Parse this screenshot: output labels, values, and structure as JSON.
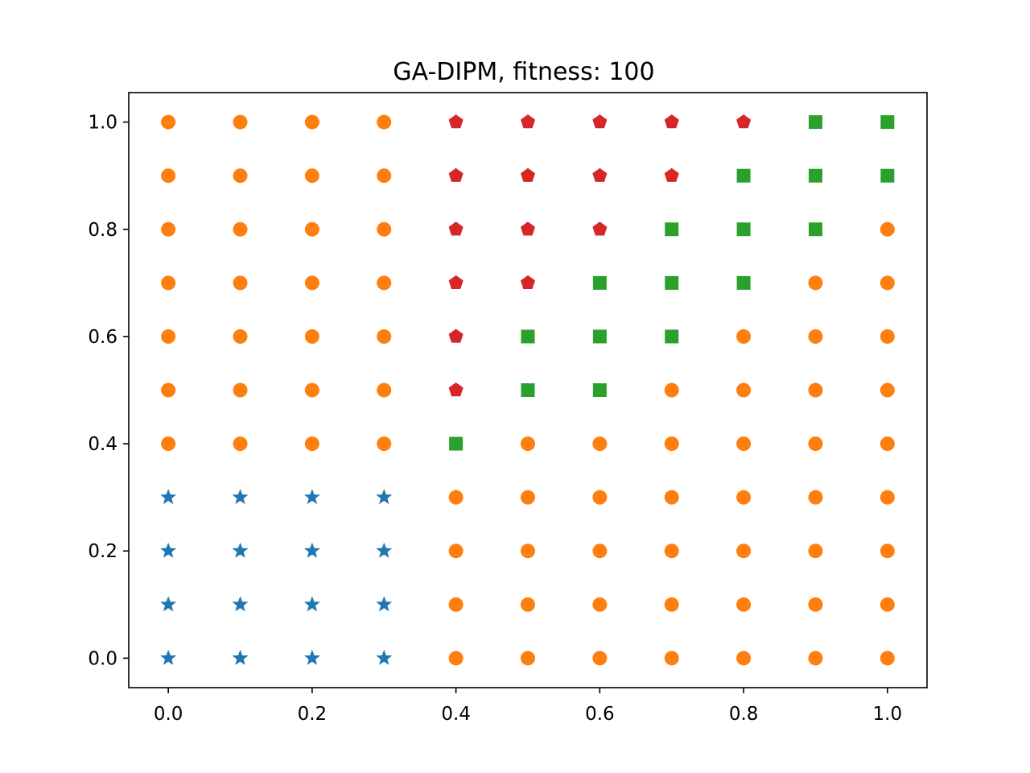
{
  "chart_data": {
    "type": "scatter",
    "title": "GA-DIPM, fitness: 100",
    "xlabel": "",
    "ylabel": "",
    "xlim": [
      -0.055,
      1.055
    ],
    "ylim": [
      -0.055,
      1.055
    ],
    "grid": false,
    "legend": "none",
    "x_ticks": [
      "0.0",
      "0.2",
      "0.4",
      "0.6",
      "0.8",
      "1.0"
    ],
    "y_ticks": [
      "0.0",
      "0.2",
      "0.4",
      "0.6",
      "0.8",
      "1.0"
    ],
    "x_tick_values": [
      0.0,
      0.2,
      0.4,
      0.6,
      0.8,
      1.0
    ],
    "y_tick_values": [
      0.0,
      0.2,
      0.4,
      0.6,
      0.8,
      1.0
    ],
    "series": [
      {
        "marker": "star",
        "color": "#1f77b4",
        "points": [
          [
            0.0,
            0.0
          ],
          [
            0.1,
            0.0
          ],
          [
            0.2,
            0.0
          ],
          [
            0.3,
            0.0
          ],
          [
            0.0,
            0.1
          ],
          [
            0.1,
            0.1
          ],
          [
            0.2,
            0.1
          ],
          [
            0.3,
            0.1
          ],
          [
            0.0,
            0.2
          ],
          [
            0.1,
            0.2
          ],
          [
            0.2,
            0.2
          ],
          [
            0.3,
            0.2
          ],
          [
            0.0,
            0.3
          ],
          [
            0.1,
            0.3
          ],
          [
            0.2,
            0.3
          ],
          [
            0.3,
            0.3
          ]
        ]
      },
      {
        "marker": "circle",
        "color": "#ff7f0e",
        "points": [
          [
            0.4,
            0.0
          ],
          [
            0.5,
            0.0
          ],
          [
            0.6,
            0.0
          ],
          [
            0.7,
            0.0
          ],
          [
            0.8,
            0.0
          ],
          [
            0.9,
            0.0
          ],
          [
            1.0,
            0.0
          ],
          [
            0.4,
            0.1
          ],
          [
            0.5,
            0.1
          ],
          [
            0.6,
            0.1
          ],
          [
            0.7,
            0.1
          ],
          [
            0.8,
            0.1
          ],
          [
            0.9,
            0.1
          ],
          [
            1.0,
            0.1
          ],
          [
            0.4,
            0.2
          ],
          [
            0.5,
            0.2
          ],
          [
            0.6,
            0.2
          ],
          [
            0.7,
            0.2
          ],
          [
            0.8,
            0.2
          ],
          [
            0.9,
            0.2
          ],
          [
            1.0,
            0.2
          ],
          [
            0.4,
            0.3
          ],
          [
            0.5,
            0.3
          ],
          [
            0.6,
            0.3
          ],
          [
            0.7,
            0.3
          ],
          [
            0.8,
            0.3
          ],
          [
            0.9,
            0.3
          ],
          [
            1.0,
            0.3
          ],
          [
            0.0,
            0.4
          ],
          [
            0.1,
            0.4
          ],
          [
            0.2,
            0.4
          ],
          [
            0.3,
            0.4
          ],
          [
            0.5,
            0.4
          ],
          [
            0.6,
            0.4
          ],
          [
            0.7,
            0.4
          ],
          [
            0.8,
            0.4
          ],
          [
            0.9,
            0.4
          ],
          [
            1.0,
            0.4
          ],
          [
            0.0,
            0.5
          ],
          [
            0.1,
            0.5
          ],
          [
            0.2,
            0.5
          ],
          [
            0.3,
            0.5
          ],
          [
            0.7,
            0.5
          ],
          [
            0.8,
            0.5
          ],
          [
            0.9,
            0.5
          ],
          [
            1.0,
            0.5
          ],
          [
            0.0,
            0.6
          ],
          [
            0.1,
            0.6
          ],
          [
            0.2,
            0.6
          ],
          [
            0.3,
            0.6
          ],
          [
            0.8,
            0.6
          ],
          [
            0.9,
            0.6
          ],
          [
            1.0,
            0.6
          ],
          [
            0.0,
            0.7
          ],
          [
            0.1,
            0.7
          ],
          [
            0.2,
            0.7
          ],
          [
            0.3,
            0.7
          ],
          [
            0.9,
            0.7
          ],
          [
            1.0,
            0.7
          ],
          [
            0.0,
            0.8
          ],
          [
            0.1,
            0.8
          ],
          [
            0.2,
            0.8
          ],
          [
            0.3,
            0.8
          ],
          [
            1.0,
            0.8
          ],
          [
            0.0,
            0.9
          ],
          [
            0.1,
            0.9
          ],
          [
            0.2,
            0.9
          ],
          [
            0.3,
            0.9
          ],
          [
            0.0,
            1.0
          ],
          [
            0.1,
            1.0
          ],
          [
            0.2,
            1.0
          ],
          [
            0.3,
            1.0
          ]
        ]
      },
      {
        "marker": "square",
        "color": "#2ca02c",
        "points": [
          [
            0.4,
            0.4
          ],
          [
            0.5,
            0.5
          ],
          [
            0.6,
            0.5
          ],
          [
            0.5,
            0.6
          ],
          [
            0.6,
            0.6
          ],
          [
            0.7,
            0.6
          ],
          [
            0.6,
            0.7
          ],
          [
            0.7,
            0.7
          ],
          [
            0.8,
            0.7
          ],
          [
            0.7,
            0.8
          ],
          [
            0.8,
            0.8
          ],
          [
            0.9,
            0.8
          ],
          [
            0.8,
            0.9
          ],
          [
            0.9,
            0.9
          ],
          [
            1.0,
            0.9
          ],
          [
            0.9,
            1.0
          ],
          [
            1.0,
            1.0
          ]
        ]
      },
      {
        "marker": "pentagon",
        "color": "#d62728",
        "points": [
          [
            0.4,
            0.5
          ],
          [
            0.4,
            0.6
          ],
          [
            0.4,
            0.7
          ],
          [
            0.5,
            0.7
          ],
          [
            0.4,
            0.8
          ],
          [
            0.5,
            0.8
          ],
          [
            0.6,
            0.8
          ],
          [
            0.4,
            0.9
          ],
          [
            0.5,
            0.9
          ],
          [
            0.6,
            0.9
          ],
          [
            0.7,
            0.9
          ],
          [
            0.4,
            1.0
          ],
          [
            0.5,
            1.0
          ],
          [
            0.6,
            1.0
          ],
          [
            0.7,
            1.0
          ],
          [
            0.8,
            1.0
          ]
        ]
      }
    ]
  }
}
